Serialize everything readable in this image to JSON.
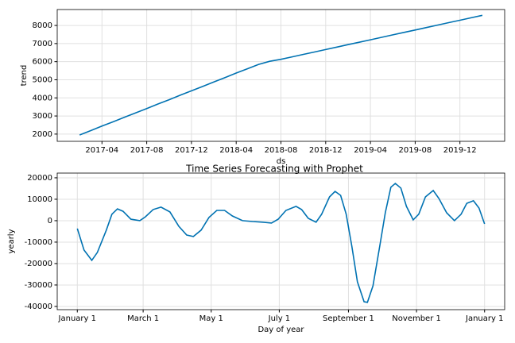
{
  "chart_data": [
    {
      "type": "line",
      "xlabel": "ds",
      "ylabel": "trend",
      "color": "#0072b2",
      "grid": true,
      "x": [
        "2017-02",
        "2017-03",
        "2017-04",
        "2017-05",
        "2017-06",
        "2017-07",
        "2017-08",
        "2017-09",
        "2017-10",
        "2017-11",
        "2017-12",
        "2018-01",
        "2018-02",
        "2018-03",
        "2018-04",
        "2018-05",
        "2018-06",
        "2018-07",
        "2018-08",
        "2018-09",
        "2018-10",
        "2018-11",
        "2018-12",
        "2019-01",
        "2019-02",
        "2019-03",
        "2019-04",
        "2019-05",
        "2019-06",
        "2019-07",
        "2019-08",
        "2019-09",
        "2019-10",
        "2019-11",
        "2019-12",
        "2020-01",
        "2020-02"
      ],
      "values": [
        1950,
        2190,
        2440,
        2680,
        2930,
        3170,
        3410,
        3660,
        3900,
        4150,
        4390,
        4630,
        4880,
        5120,
        5370,
        5610,
        5850,
        6020,
        6130,
        6265,
        6400,
        6535,
        6670,
        6805,
        6940,
        7075,
        7210,
        7345,
        7480,
        7615,
        7750,
        7885,
        8020,
        8155,
        8290,
        8425,
        8560
      ],
      "xlim": [
        "2016-12",
        "2020-04"
      ],
      "xticks": [
        "2017-04",
        "2017-08",
        "2017-12",
        "2018-04",
        "2018-08",
        "2018-12",
        "2019-04",
        "2019-08",
        "2019-12"
      ],
      "ylim": [
        1600,
        8880
      ],
      "yticks": [
        2000,
        3000,
        4000,
        5000,
        6000,
        7000,
        8000
      ]
    },
    {
      "type": "line",
      "title": "Time Series Forecasting with Prophet",
      "xlabel": "Day of year",
      "ylabel": "yearly",
      "color": "#0072b2",
      "grid": true,
      "x": [
        0,
        6,
        13,
        18,
        26,
        31,
        36,
        41,
        48,
        56,
        61,
        68,
        75,
        83,
        91,
        98,
        104,
        111,
        118,
        125,
        132,
        139,
        148,
        157,
        166,
        174,
        180,
        187,
        196,
        201,
        207,
        214,
        219,
        226,
        231,
        236,
        241,
        246,
        251,
        257,
        260,
        265,
        271,
        276,
        281,
        285,
        290,
        295,
        301,
        306,
        312,
        319,
        324,
        331,
        338,
        344,
        349,
        355,
        360,
        365
      ],
      "values": [
        -3700,
        -13700,
        -18500,
        -14800,
        -4400,
        3000,
        5500,
        4400,
        700,
        0,
        1800,
        5200,
        6300,
        4100,
        -2600,
        -6700,
        -7400,
        -4400,
        1500,
        4800,
        4800,
        2200,
        0,
        -400,
        -700,
        -1100,
        700,
        4800,
        6700,
        5200,
        1100,
        -700,
        3000,
        11100,
        13700,
        11800,
        3000,
        -11900,
        -28500,
        -37800,
        -38100,
        -30400,
        -11900,
        3700,
        15600,
        17400,
        15200,
        6700,
        400,
        3000,
        11100,
        14100,
        10400,
        3700,
        0,
        3000,
        8100,
        9300,
        5900,
        -1500
      ],
      "xlim": [
        -18,
        383
      ],
      "xticks": [
        {
          "value": 0,
          "label": "January 1"
        },
        {
          "value": 59,
          "label": "March 1"
        },
        {
          "value": 120,
          "label": "May 1"
        },
        {
          "value": 181,
          "label": "July 1"
        },
        {
          "value": 243,
          "label": "September 1"
        },
        {
          "value": 304,
          "label": "November 1"
        },
        {
          "value": 365,
          "label": "January 1"
        }
      ],
      "ylim": [
        -41500,
        22200
      ],
      "yticks": [
        20000,
        10000,
        0,
        -10000,
        -20000,
        -30000,
        -40000
      ]
    }
  ]
}
